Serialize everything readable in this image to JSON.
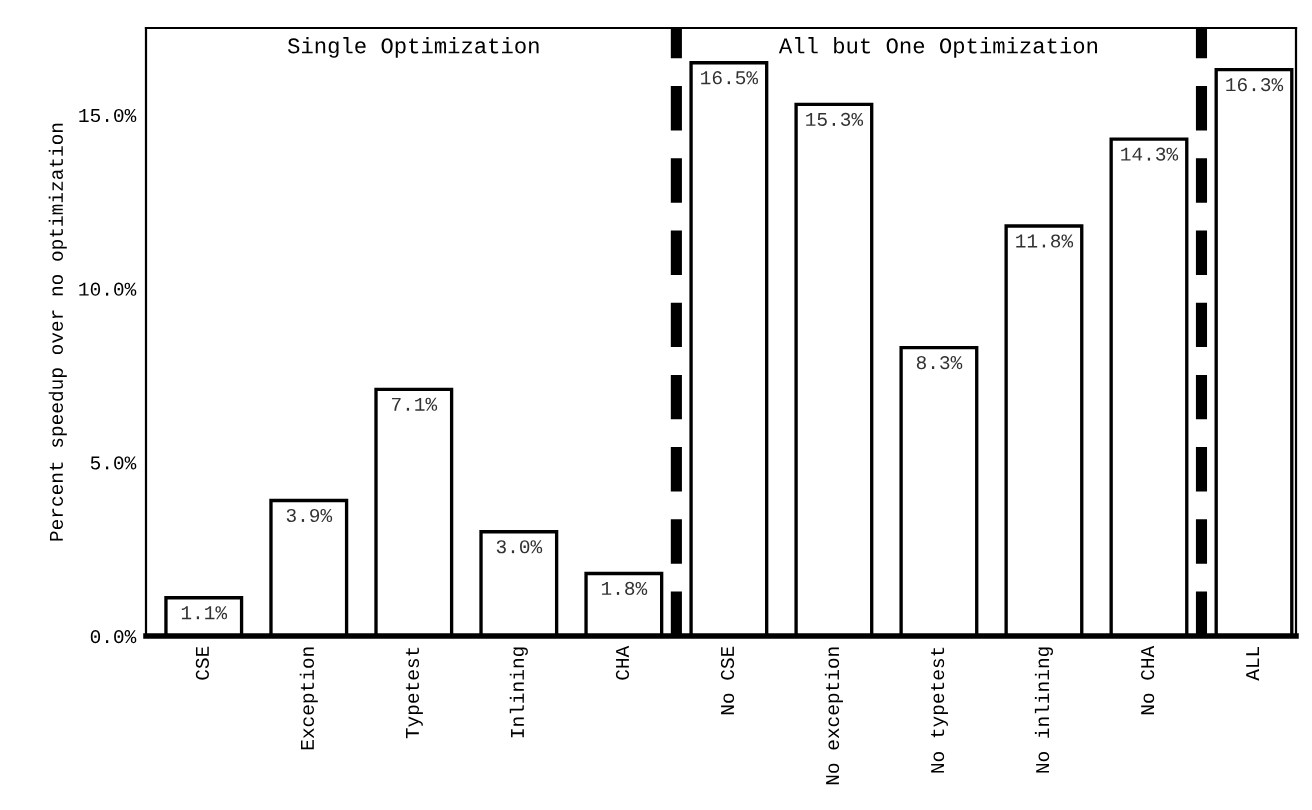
{
  "chart_data": {
    "type": "bar",
    "ylabel": "Percent speedup over no optimization",
    "categories": [
      "CSE",
      "Exception",
      "Typetest",
      "Inlining",
      "CHA",
      "No CSE",
      "No exception",
      "No typetest",
      "No inlining",
      "No CHA",
      "ALL"
    ],
    "values": [
      1.1,
      3.9,
      7.1,
      3.0,
      1.8,
      16.5,
      15.3,
      8.3,
      11.8,
      14.3,
      16.3
    ],
    "value_labels": [
      "1.1%",
      "3.9%",
      "7.1%",
      "3.0%",
      "1.8%",
      "16.5%",
      "15.3%",
      "8.3%",
      "11.8%",
      "14.3%",
      "16.3%"
    ],
    "color": "#ffffff",
    "ylim": [
      0,
      17.5
    ],
    "yticks": [
      {
        "value": 0,
        "label": "0.0%"
      },
      {
        "value": 5,
        "label": "5.0%"
      },
      {
        "value": 10,
        "label": "10.0%"
      },
      {
        "value": 15,
        "label": "15.0%"
      }
    ],
    "annotations": [
      "Single Optimization",
      "All but One Optimization"
    ],
    "grid": false,
    "legend": false
  }
}
